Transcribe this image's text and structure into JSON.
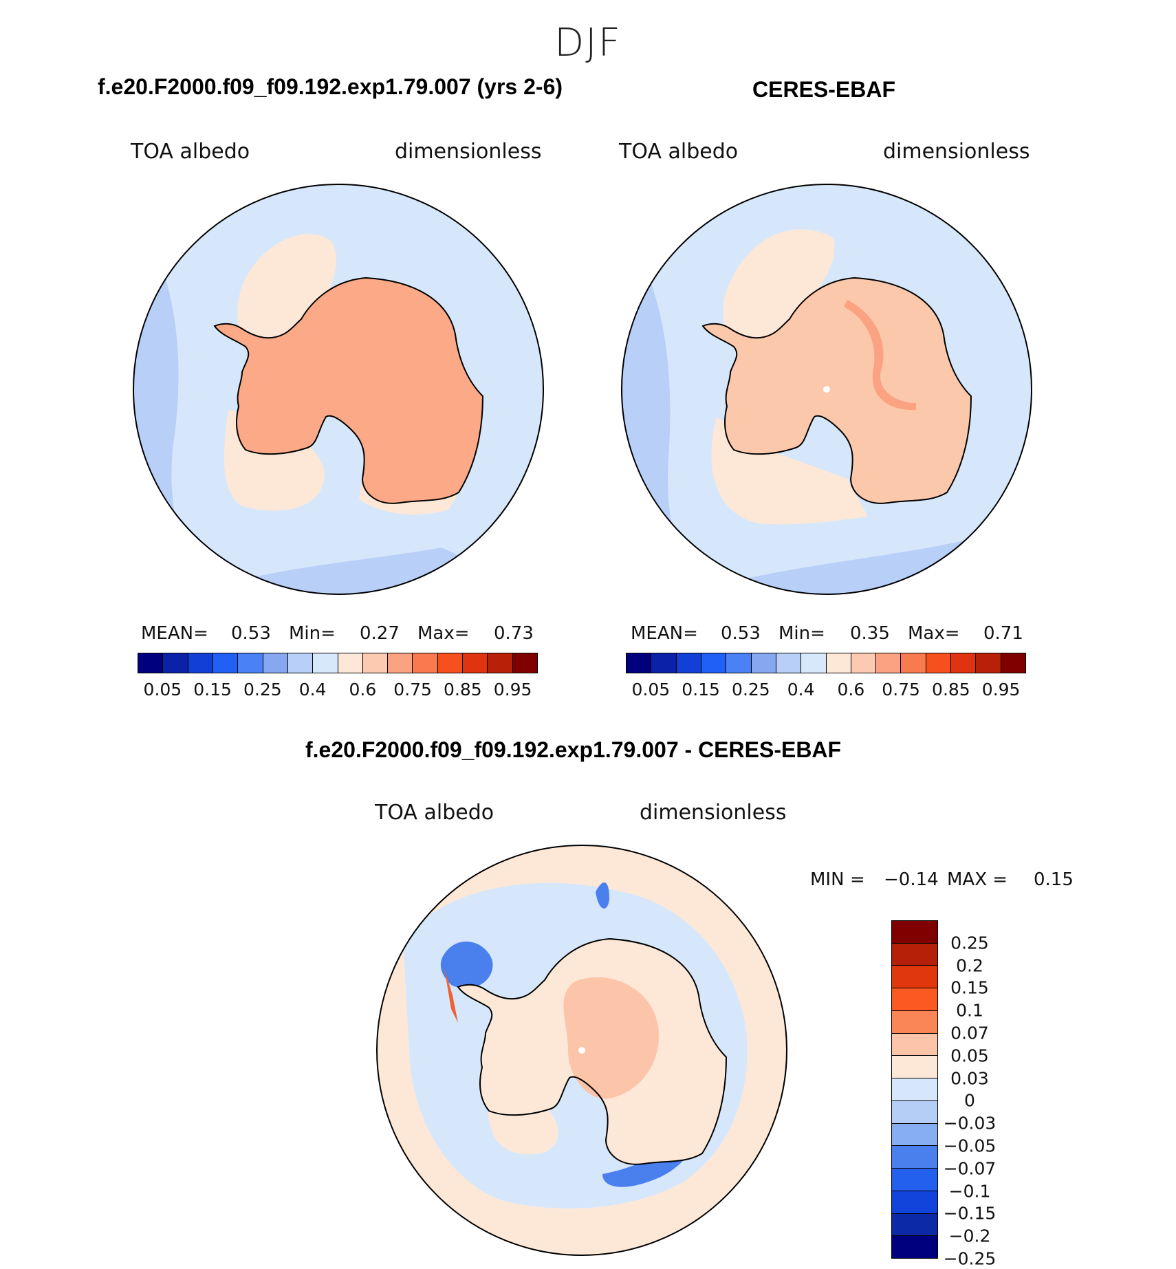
{
  "season": "DJF",
  "panels": {
    "model": {
      "title": "f.e20.F2000.f09_f09.192.exp1.79.007 (yrs 2-6)",
      "var_label": "TOA albedo",
      "units_label": "dimensionless",
      "stats": {
        "mean_label": "MEAN=",
        "mean": "0.53",
        "min_label": "Min=",
        "min": "0.27",
        "max_label": "Max=",
        "max": "0.73"
      }
    },
    "obs": {
      "title": "CERES-EBAF",
      "var_label": "TOA albedo",
      "units_label": "dimensionless",
      "stats": {
        "mean_label": "MEAN=",
        "mean": "0.53",
        "min_label": "Min=",
        "min": "0.35",
        "max_label": "Max=",
        "max": "0.71"
      }
    },
    "diff": {
      "title": "f.e20.F2000.f09_f09.192.exp1.79.007 - CERES-EBAF",
      "var_label": "TOA albedo",
      "units_label": "dimensionless",
      "stats": {
        "min_label": "MIN =",
        "min": "−0.14",
        "max_label": "MAX =",
        "max": "0.15"
      }
    }
  },
  "colorbars": {
    "absolute": {
      "colors": [
        "#00007f",
        "#0a22a8",
        "#1240d6",
        "#2060f4",
        "#4a82f5",
        "#86a8f0",
        "#b8cff8",
        "#d8e8fb",
        "#fde8d8",
        "#fccab0",
        "#fba282",
        "#fa7a50",
        "#f6501e",
        "#e03410",
        "#b82008",
        "#800000"
      ],
      "labels": [
        "0.05",
        "0.15",
        "0.25",
        "0.4",
        "0.6",
        "0.75",
        "0.85",
        "0.95"
      ]
    },
    "difference": {
      "colors": [
        "#800000",
        "#b42008",
        "#e0380c",
        "#fa5a22",
        "#fa8658",
        "#fcc4a8",
        "#fde8d8",
        "#d6e7fb",
        "#b4cef6",
        "#88aef2",
        "#4a7fee",
        "#2460ee",
        "#1244dc",
        "#0c2aa8",
        "#00007f"
      ],
      "labels": [
        "0.25",
        "0.2",
        "0.15",
        "0.1",
        "0.07",
        "0.05",
        "0.03",
        "0",
        "−0.03",
        "−0.05",
        "−0.07",
        "−0.1",
        "−0.15",
        "−0.2",
        "−0.25"
      ]
    }
  },
  "map_colors": {
    "ocean": "#d6e7fb",
    "ocean_mid": "#b8cff8",
    "ocean_dark": "#88aef2",
    "cloud": "#fde8d8",
    "land_model": "#fba986",
    "land_obs": "#fcc8ac",
    "ridge_obs": "#fba282",
    "diff_pos": "#fcc4a8",
    "diff_neg": "#4a7fee",
    "diff_hot": "#f06030",
    "coast": "#000000"
  }
}
